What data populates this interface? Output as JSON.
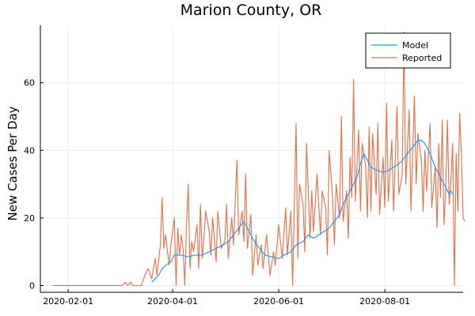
{
  "chart_data": {
    "type": "line",
    "title": "Marion County, OR",
    "xlabel": "",
    "ylabel": "New Cases Per Day",
    "x_type": "date",
    "xlim": [
      "2020-01-16",
      "2020-09-15"
    ],
    "ylim": [
      -2,
      77
    ],
    "x_ticks": [
      "2020-02-01",
      "2020-04-01",
      "2020-06-01",
      "2020-08-01"
    ],
    "y_ticks": [
      0,
      20,
      40,
      60
    ],
    "grid": true,
    "legend": {
      "position": "top-right"
    },
    "colors": {
      "Model": "#009af9",
      "Reported": "#e26f46"
    },
    "series": [
      {
        "name": "Model",
        "points": [
          [
            "2020-03-20",
            1
          ],
          [
            "2020-03-24",
            3
          ],
          [
            "2020-03-26",
            5
          ],
          [
            "2020-03-28",
            6
          ],
          [
            "2020-03-31",
            7
          ],
          [
            "2020-04-02",
            9
          ],
          [
            "2020-04-06",
            9
          ],
          [
            "2020-04-10",
            8.5
          ],
          [
            "2020-04-14",
            9
          ],
          [
            "2020-04-18",
            9
          ],
          [
            "2020-04-22",
            10
          ],
          [
            "2020-04-26",
            11
          ],
          [
            "2020-04-30",
            12
          ],
          [
            "2020-05-03",
            13
          ],
          [
            "2020-05-06",
            15
          ],
          [
            "2020-05-09",
            17
          ],
          [
            "2020-05-12",
            19
          ],
          [
            "2020-05-15",
            16
          ],
          [
            "2020-05-18",
            13
          ],
          [
            "2020-05-21",
            11
          ],
          [
            "2020-05-24",
            9
          ],
          [
            "2020-05-28",
            8.5
          ],
          [
            "2020-06-01",
            8
          ],
          [
            "2020-06-04",
            9
          ],
          [
            "2020-06-08",
            10
          ],
          [
            "2020-06-11",
            12
          ],
          [
            "2020-06-15",
            13
          ],
          [
            "2020-06-18",
            15
          ],
          [
            "2020-06-21",
            14
          ],
          [
            "2020-06-24",
            15
          ],
          [
            "2020-06-27",
            16
          ],
          [
            "2020-06-30",
            17
          ],
          [
            "2020-07-03",
            19
          ],
          [
            "2020-07-06",
            21
          ],
          [
            "2020-07-08",
            24
          ],
          [
            "2020-07-11",
            27
          ],
          [
            "2020-07-13",
            29
          ],
          [
            "2020-07-16",
            32
          ],
          [
            "2020-07-18",
            36
          ],
          [
            "2020-07-20",
            39
          ],
          [
            "2020-07-22",
            37
          ],
          [
            "2020-07-24",
            35
          ],
          [
            "2020-07-28",
            34
          ],
          [
            "2020-07-31",
            33.5
          ],
          [
            "2020-08-03",
            34
          ],
          [
            "2020-08-06",
            35
          ],
          [
            "2020-08-09",
            36
          ],
          [
            "2020-08-11",
            37
          ],
          [
            "2020-08-14",
            39
          ],
          [
            "2020-08-17",
            41
          ],
          [
            "2020-08-20",
            43
          ],
          [
            "2020-08-22",
            43
          ],
          [
            "2020-08-24",
            42
          ],
          [
            "2020-08-27",
            39
          ],
          [
            "2020-08-30",
            35
          ],
          [
            "2020-09-02",
            32
          ],
          [
            "2020-09-05",
            29
          ],
          [
            "2020-09-07",
            27
          ],
          [
            "2020-09-08",
            28
          ],
          [
            "2020-09-09",
            27
          ]
        ]
      },
      {
        "name": "Reported",
        "points": [
          [
            "2020-01-23",
            0
          ],
          [
            "2020-03-03",
            0
          ],
          [
            "2020-03-05",
            1
          ],
          [
            "2020-03-06",
            0
          ],
          [
            "2020-03-08",
            1
          ],
          [
            "2020-03-09",
            0
          ],
          [
            "2020-03-14",
            0
          ],
          [
            "2020-03-16",
            3
          ],
          [
            "2020-03-18",
            5
          ],
          [
            "2020-03-20",
            2
          ],
          [
            "2020-03-22",
            8
          ],
          [
            "2020-03-23",
            3
          ],
          [
            "2020-03-25",
            12
          ],
          [
            "2020-03-26",
            26
          ],
          [
            "2020-03-27",
            11
          ],
          [
            "2020-03-28",
            15
          ],
          [
            "2020-03-30",
            6
          ],
          [
            "2020-03-31",
            12
          ],
          [
            "2020-04-02",
            20
          ],
          [
            "2020-04-03",
            0
          ],
          [
            "2020-04-04",
            17
          ],
          [
            "2020-04-05",
            9
          ],
          [
            "2020-04-06",
            15
          ],
          [
            "2020-04-07",
            11
          ],
          [
            "2020-04-08",
            0
          ],
          [
            "2020-04-09",
            18
          ],
          [
            "2020-04-10",
            30
          ],
          [
            "2020-04-11",
            5
          ],
          [
            "2020-04-12",
            13
          ],
          [
            "2020-04-13",
            10
          ],
          [
            "2020-04-15",
            18
          ],
          [
            "2020-04-16",
            5
          ],
          [
            "2020-04-17",
            24
          ],
          [
            "2020-04-18",
            8
          ],
          [
            "2020-04-19",
            14
          ],
          [
            "2020-04-20",
            22
          ],
          [
            "2020-04-22",
            16
          ],
          [
            "2020-04-23",
            9
          ],
          [
            "2020-04-24",
            20
          ],
          [
            "2020-04-26",
            7
          ],
          [
            "2020-04-27",
            22
          ],
          [
            "2020-04-29",
            11
          ],
          [
            "2020-05-01",
            13
          ],
          [
            "2020-05-02",
            24
          ],
          [
            "2020-05-03",
            8
          ],
          [
            "2020-05-05",
            20
          ],
          [
            "2020-05-06",
            12
          ],
          [
            "2020-05-08",
            37
          ],
          [
            "2020-05-09",
            15
          ],
          [
            "2020-05-11",
            22
          ],
          [
            "2020-05-12",
            13
          ],
          [
            "2020-05-13",
            33
          ],
          [
            "2020-05-14",
            11
          ],
          [
            "2020-05-16",
            21
          ],
          [
            "2020-05-17",
            3
          ],
          [
            "2020-05-19",
            15
          ],
          [
            "2020-05-20",
            6
          ],
          [
            "2020-05-22",
            12
          ],
          [
            "2020-05-23",
            5
          ],
          [
            "2020-05-25",
            15
          ],
          [
            "2020-05-27",
            3
          ],
          [
            "2020-05-29",
            10
          ],
          [
            "2020-05-30",
            6
          ],
          [
            "2020-06-01",
            18
          ],
          [
            "2020-06-03",
            8
          ],
          [
            "2020-06-05",
            23
          ],
          [
            "2020-06-06",
            9
          ],
          [
            "2020-06-08",
            22
          ],
          [
            "2020-06-09",
            0
          ],
          [
            "2020-06-11",
            48
          ],
          [
            "2020-06-12",
            8
          ],
          [
            "2020-06-13",
            30
          ],
          [
            "2020-06-15",
            24
          ],
          [
            "2020-06-16",
            10
          ],
          [
            "2020-06-17",
            42
          ],
          [
            "2020-06-19",
            14
          ],
          [
            "2020-06-20",
            28
          ],
          [
            "2020-06-21",
            16
          ],
          [
            "2020-06-23",
            33
          ],
          [
            "2020-06-25",
            15
          ],
          [
            "2020-06-26",
            28
          ],
          [
            "2020-06-28",
            23
          ],
          [
            "2020-06-29",
            9
          ],
          [
            "2020-06-30",
            40
          ],
          [
            "2020-07-02",
            26
          ],
          [
            "2020-07-03",
            12
          ],
          [
            "2020-07-04",
            30
          ],
          [
            "2020-07-06",
            20
          ],
          [
            "2020-07-07",
            50
          ],
          [
            "2020-07-08",
            19
          ],
          [
            "2020-07-10",
            28
          ],
          [
            "2020-07-11",
            14
          ],
          [
            "2020-07-12",
            38
          ],
          [
            "2020-07-13",
            26
          ],
          [
            "2020-07-14",
            61
          ],
          [
            "2020-07-15",
            25
          ],
          [
            "2020-07-17",
            46
          ],
          [
            "2020-07-18",
            22
          ],
          [
            "2020-07-19",
            42
          ],
          [
            "2020-07-21",
            35
          ],
          [
            "2020-07-22",
            20
          ],
          [
            "2020-07-23",
            47
          ],
          [
            "2020-07-24",
            22
          ],
          [
            "2020-07-25",
            45
          ],
          [
            "2020-07-27",
            27
          ],
          [
            "2020-07-28",
            48
          ],
          [
            "2020-07-29",
            21
          ],
          [
            "2020-07-31",
            38
          ],
          [
            "2020-08-01",
            23
          ],
          [
            "2020-08-02",
            54
          ],
          [
            "2020-08-03",
            25
          ],
          [
            "2020-08-05",
            43
          ],
          [
            "2020-08-06",
            22
          ],
          [
            "2020-08-08",
            53
          ],
          [
            "2020-08-09",
            27
          ],
          [
            "2020-08-11",
            33
          ],
          [
            "2020-08-12",
            75
          ],
          [
            "2020-08-13",
            30
          ],
          [
            "2020-08-15",
            52
          ],
          [
            "2020-08-16",
            22
          ],
          [
            "2020-08-18",
            56
          ],
          [
            "2020-08-19",
            30
          ],
          [
            "2020-08-20",
            45
          ],
          [
            "2020-08-22",
            37
          ],
          [
            "2020-08-23",
            22
          ],
          [
            "2020-08-24",
            40
          ],
          [
            "2020-08-25",
            28
          ],
          [
            "2020-08-27",
            48
          ],
          [
            "2020-08-28",
            23
          ],
          [
            "2020-08-30",
            35
          ],
          [
            "2020-08-31",
            17
          ],
          [
            "2020-09-01",
            42
          ],
          [
            "2020-09-02",
            26
          ],
          [
            "2020-09-03",
            49
          ],
          [
            "2020-09-04",
            18
          ],
          [
            "2020-09-05",
            28
          ],
          [
            "2020-09-06",
            49
          ],
          [
            "2020-09-07",
            24
          ],
          [
            "2020-09-08",
            31
          ],
          [
            "2020-09-09",
            42
          ],
          [
            "2020-09-10",
            0
          ],
          [
            "2020-09-11",
            39
          ],
          [
            "2020-09-12",
            22
          ],
          [
            "2020-09-13",
            51
          ],
          [
            "2020-09-14",
            39
          ],
          [
            "2020-09-15",
            20
          ],
          [
            "2020-09-16",
            19
          ]
        ]
      }
    ]
  }
}
